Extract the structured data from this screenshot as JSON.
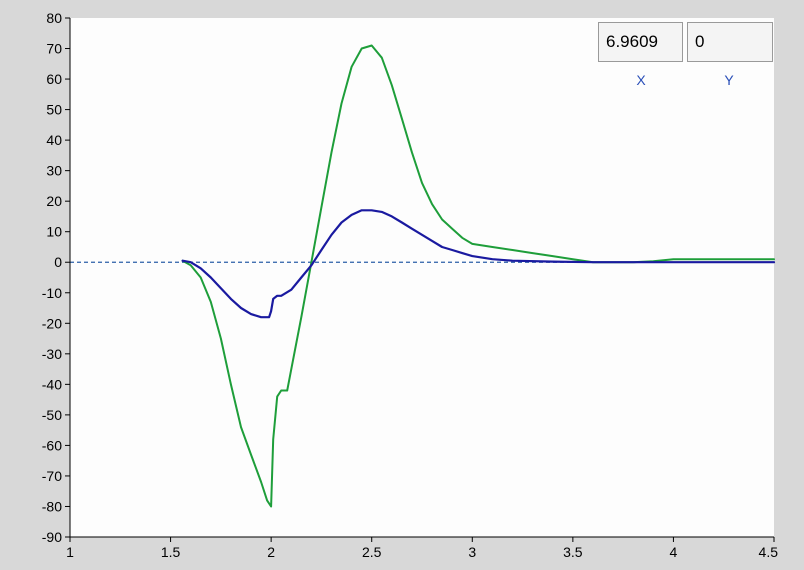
{
  "chart_data": {
    "type": "line",
    "title": "",
    "xlabel": "",
    "ylabel": "",
    "xlim": [
      1,
      4.5
    ],
    "ylim": [
      -90,
      80
    ],
    "x_ticks": [
      "1",
      "1.5",
      "2",
      "2.5",
      "3",
      "3.5",
      "4",
      "4.5"
    ],
    "y_ticks": [
      "80",
      "70",
      "60",
      "50",
      "40",
      "30",
      "20",
      "10",
      "0",
      "-10",
      "-20",
      "-30",
      "-40",
      "-50",
      "-60",
      "-70",
      "-80",
      "-90"
    ],
    "reference_line": {
      "y": 0,
      "style": "dashed"
    },
    "series": [
      {
        "color": "#1e9e3a",
        "x": [
          1.56,
          1.6,
          1.65,
          1.7,
          1.75,
          1.8,
          1.85,
          1.9,
          1.95,
          1.98,
          2.0,
          2.01,
          2.03,
          2.05,
          2.08,
          2.1,
          2.15,
          2.2,
          2.25,
          2.3,
          2.35,
          2.4,
          2.45,
          2.5,
          2.55,
          2.6,
          2.65,
          2.7,
          2.75,
          2.8,
          2.85,
          2.9,
          2.95,
          3.0,
          3.1,
          3.2,
          3.3,
          3.4,
          3.5,
          3.6,
          3.7,
          3.8,
          3.9,
          4.0,
          4.2,
          4.5
        ],
        "y": [
          0.5,
          -1,
          -5,
          -13,
          -25,
          -40,
          -54,
          -63,
          -72,
          -78,
          -80,
          -58,
          -44,
          -42,
          -42,
          -35,
          -18,
          0,
          18,
          36,
          52,
          64,
          70,
          71,
          67,
          58,
          47,
          36,
          26,
          19,
          14,
          11,
          8,
          6,
          5,
          4,
          3,
          2,
          1,
          0,
          0,
          0,
          0.3,
          1,
          1,
          1
        ]
      },
      {
        "color": "#1a1aa0",
        "x": [
          1.56,
          1.6,
          1.65,
          1.7,
          1.75,
          1.8,
          1.85,
          1.9,
          1.95,
          1.99,
          2.0,
          2.01,
          2.03,
          2.05,
          2.1,
          2.15,
          2.2,
          2.25,
          2.3,
          2.35,
          2.4,
          2.45,
          2.5,
          2.55,
          2.6,
          2.65,
          2.7,
          2.75,
          2.8,
          2.85,
          2.9,
          2.95,
          3.0,
          3.1,
          3.2,
          3.4,
          3.6,
          4.0,
          4.5
        ],
        "y": [
          0.5,
          0,
          -2,
          -5,
          -8.5,
          -12,
          -15,
          -17,
          -18,
          -18,
          -16,
          -12,
          -11,
          -11,
          -9,
          -5,
          -1,
          4,
          9,
          13,
          15.5,
          17,
          17,
          16.5,
          15,
          13,
          11,
          9,
          7,
          5,
          4,
          3,
          2,
          1,
          0.5,
          0.2,
          0,
          0,
          0
        ]
      }
    ]
  },
  "cursor": {
    "x_value": "6.9609",
    "y_value": "0",
    "x_label": "X",
    "y_label": "Y"
  }
}
